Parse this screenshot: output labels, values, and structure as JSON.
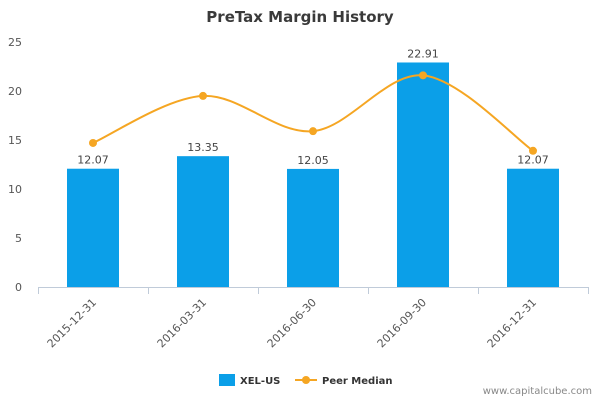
{
  "chart_data": {
    "type": "bar",
    "title": "PreTax Margin History",
    "categories": [
      "2015-12-31",
      "2016-03-31",
      "2016-06-30",
      "2016-09-30",
      "2016-12-31"
    ],
    "series": [
      {
        "name": "XEL-US",
        "type": "bar",
        "color": "#0b9fe8",
        "values": [
          12.07,
          13.35,
          12.05,
          22.91,
          12.07
        ]
      },
      {
        "name": "Peer Median",
        "type": "line",
        "color": "#f5a623",
        "values": [
          14.7,
          19.5,
          15.9,
          21.6,
          13.9
        ]
      }
    ],
    "data_labels": [
      "12.07",
      "13.35",
      "12.05",
      "22.91",
      "12.07"
    ],
    "ylim": [
      0,
      25
    ],
    "yticks": [
      "0",
      "5",
      "10",
      "15",
      "20",
      "25"
    ],
    "xlabel": "",
    "ylabel": "",
    "grid": false,
    "legend_position": "bottom-center"
  },
  "credit": "www.capitalcube.com"
}
